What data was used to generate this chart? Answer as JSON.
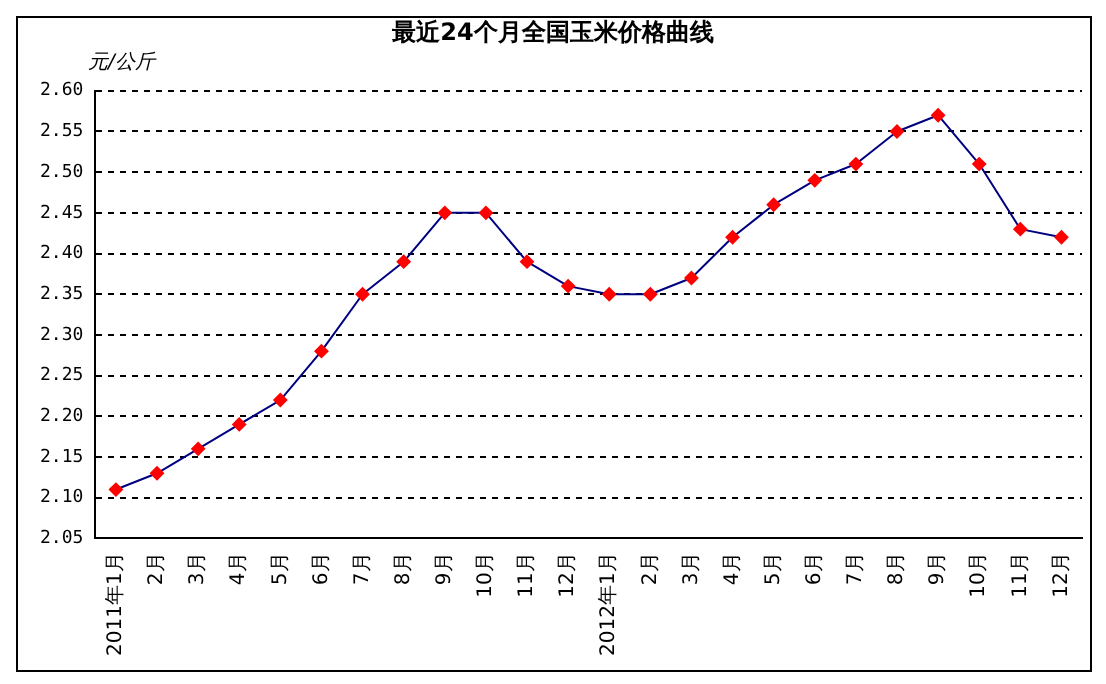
{
  "chart_data": {
    "type": "line",
    "title": "最近24个月全国玉米价格曲线",
    "ylabel": "元/公斤",
    "categories": [
      "2011年1月",
      "2月",
      "3月",
      "4月",
      "5月",
      "6月",
      "7月",
      "8月",
      "9月",
      "10月",
      "11月",
      "12月",
      "2012年1月",
      "2月",
      "3月",
      "4月",
      "5月",
      "6月",
      "7月",
      "8月",
      "9月",
      "10月",
      "11月",
      "12月"
    ],
    "series": [
      {
        "color": "#000080",
        "colors": [
          "#ff0000",
          "#ff0000",
          "#ff0000",
          "#ff0000",
          "#ff0000",
          "#ff0000",
          "#ff0000",
          "#ff0000",
          "#ff0000",
          "#ff0000",
          "#ff0000",
          "#ff0000",
          "#ff0000",
          "#ff0000",
          "#ff0000",
          "#ff0000",
          "#ff0000",
          "#ff0000",
          "#ff0000",
          "#ff0000",
          "#ff0000",
          "#ff0000",
          "#ff0000",
          "#ff0000"
        ],
        "values": [
          2.11,
          2.13,
          2.16,
          2.19,
          2.22,
          2.28,
          2.35,
          2.39,
          2.45,
          2.45,
          2.39,
          2.36,
          2.35,
          2.35,
          2.37,
          2.42,
          2.46,
          2.49,
          2.51,
          2.55,
          2.57,
          2.51,
          2.43,
          2.42
        ]
      }
    ],
    "ylim": [
      2.05,
      2.6
    ],
    "yticks": [
      {
        "value": 2.05,
        "label": "2.05"
      },
      {
        "value": 2.1,
        "label": "2.10"
      },
      {
        "value": 2.15,
        "label": "2.15"
      },
      {
        "value": 2.2,
        "label": "2.20"
      },
      {
        "value": 2.25,
        "label": "2.25"
      },
      {
        "value": 2.3,
        "label": "2.30"
      },
      {
        "value": 2.35,
        "label": "2.35"
      },
      {
        "value": 2.4,
        "label": "2.40"
      },
      {
        "value": 2.45,
        "label": "2.45"
      },
      {
        "value": 2.5,
        "label": "2.50"
      },
      {
        "value": 2.55,
        "label": "2.55"
      },
      {
        "value": 2.6,
        "label": "2.60"
      }
    ],
    "grid": "y",
    "line_style": "solid",
    "marker": "diamond",
    "legend": false
  }
}
